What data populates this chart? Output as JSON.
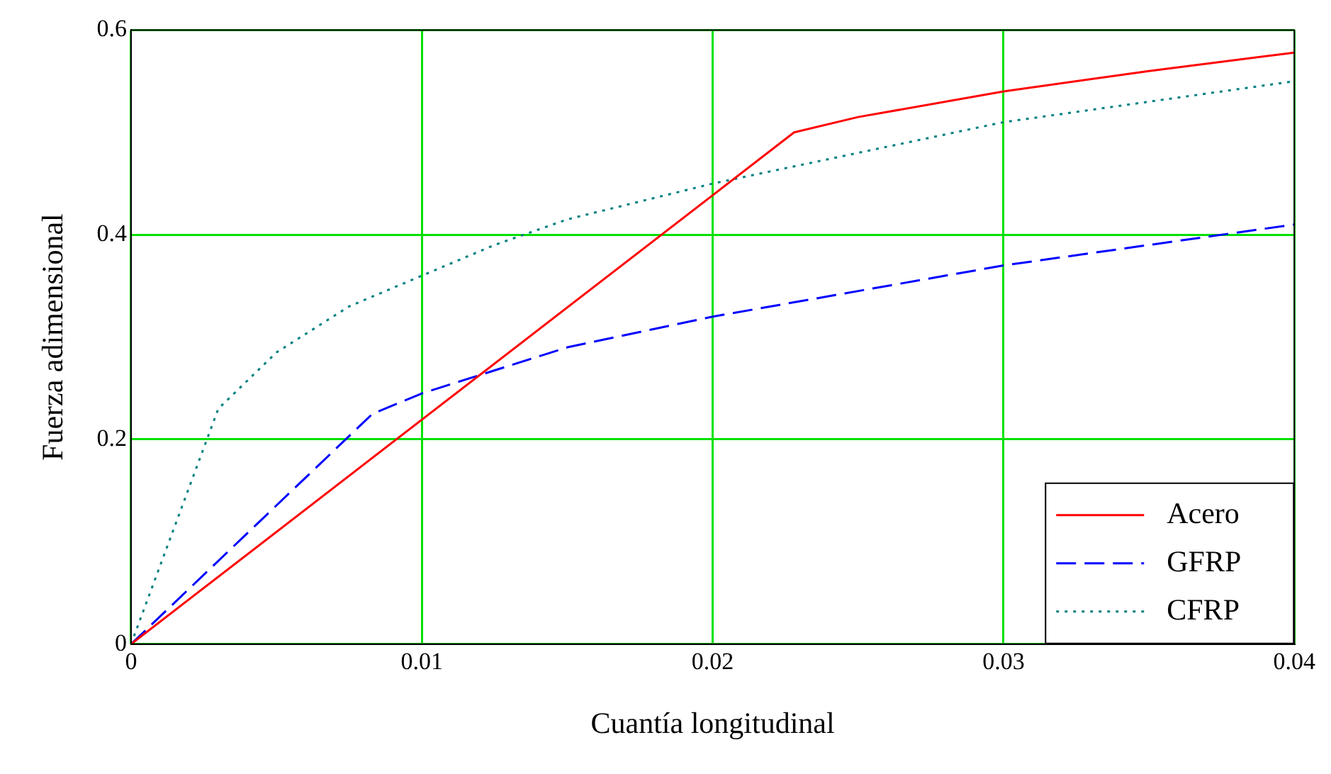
{
  "chart_data": {
    "type": "line",
    "xlabel": "Cuantía longitudinal",
    "ylabel": "Fuerza adimensional",
    "xlim": [
      0,
      0.04
    ],
    "xticks": [
      0,
      0.01,
      0.02,
      0.03,
      0.04
    ],
    "ylim": [
      0,
      0.6
    ],
    "yticks": [
      0,
      0.2,
      0.4,
      0.6
    ],
    "grid": true,
    "legend": "bottom right",
    "marker": "none",
    "series": [
      {
        "name": "Acero",
        "color": "#ff0000",
        "line_style": "solid",
        "x": [
          0,
          0.0228,
          0.025,
          0.03,
          0.035,
          0.04
        ],
        "values": [
          0,
          0.5,
          0.515,
          0.54,
          0.56,
          0.578
        ]
      },
      {
        "name": "GFRP",
        "color": "#0000ff",
        "line_style": "dashed",
        "x": [
          0,
          0.0083,
          0.01,
          0.015,
          0.02,
          0.025,
          0.03,
          0.035,
          0.04
        ],
        "values": [
          0,
          0.225,
          0.245,
          0.29,
          0.32,
          0.345,
          0.37,
          0.39,
          0.41
        ]
      },
      {
        "name": "CFRP",
        "color": "#008080",
        "line_style": "dotted",
        "x": [
          0,
          0.003,
          0.005,
          0.0075,
          0.01,
          0.0125,
          0.015,
          0.02,
          0.025,
          0.03,
          0.035,
          0.04
        ],
        "values": [
          0,
          0.23,
          0.285,
          0.33,
          0.36,
          0.39,
          0.415,
          0.45,
          0.48,
          0.51,
          0.53,
          0.55
        ]
      }
    ]
  }
}
